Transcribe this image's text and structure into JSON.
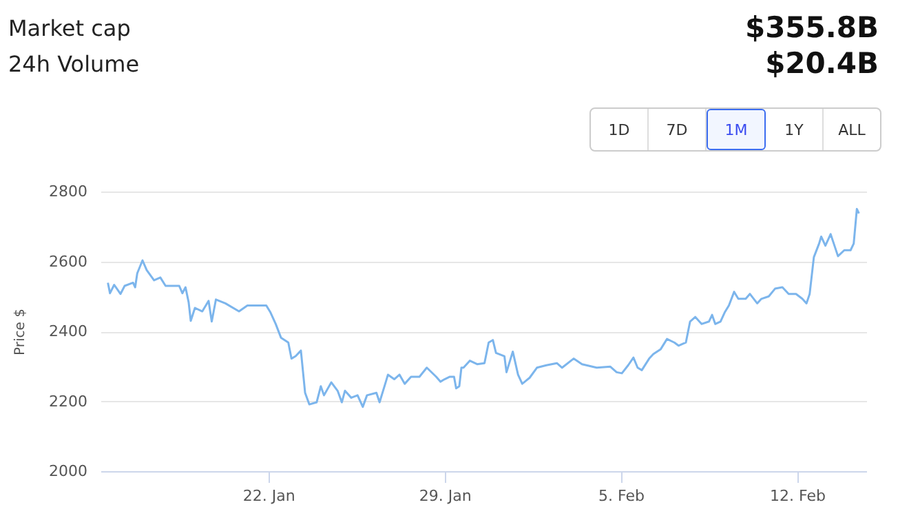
{
  "chart_data": {
    "type": "line",
    "ylabel": "Price $",
    "annotations": [
      "Market cap",
      "$355.8B",
      "24h Volume",
      "$20.4B",
      "1D",
      "7D",
      "1M",
      "1Y",
      "ALL"
    ],
    "xlim": [
      "--01-15T08:00",
      "--02-14T18:00"
    ],
    "xticks": [
      {
        "value": "--01-22",
        "label": "22. Jan"
      },
      {
        "value": "--01-29",
        "label": "29. Jan"
      },
      {
        "value": "--02-05",
        "label": "5. Feb"
      },
      {
        "value": "--02-12",
        "label": "12. Feb"
      }
    ],
    "ylim": [
      2000,
      2800
    ],
    "yticks": [
      2000,
      2200,
      2400,
      2600,
      2800
    ],
    "grid": "y",
    "series": [
      {
        "color": "#7cb5ec",
        "x": [
          "--01-15T15:00",
          "--01-15T17:00",
          "--01-15T21:00",
          "--01-16T03:00",
          "--01-16T07:00",
          "--01-16T15:00",
          "--01-16T17:00",
          "--01-16T19:00",
          "--01-17T00:00",
          "--01-17T04:00",
          "--01-17T11:00",
          "--01-17T17:00",
          "--01-17T22:00",
          "--01-18T11:00",
          "--01-18T14:00",
          "--01-18T17:00",
          "--01-18T20:00",
          "--01-18T22:00",
          "--01-19T02:00",
          "--01-19T09:00",
          "--01-19T15:00",
          "--01-19T18:00",
          "--01-19T22:00",
          "--01-20T07:00",
          "--01-20T20:00",
          "--01-21T04:00",
          "--01-21T22:00",
          "--01-22T02:00",
          "--01-22T07:00",
          "--01-22T12:00",
          "--01-22T19:00",
          "--01-22T22:00",
          "--01-23T02:00",
          "--01-23T07:00",
          "--01-23T11:00",
          "--01-23T15:00",
          "--01-23T22:00",
          "--01-24T02:00",
          "--01-24T05:00",
          "--01-24T12:00",
          "--01-24T18:00",
          "--01-24T22:00",
          "--01-25T01:00",
          "--01-25T07:00",
          "--01-25T13:00",
          "--01-25T18:00",
          "--01-25T22:00",
          "--01-26T07:00",
          "--01-26T10:00",
          "--01-26T16:00",
          "--01-26T18:00",
          "--01-27T00:00",
          "--01-27T05:00",
          "--01-27T10:00",
          "--01-27T16:00",
          "--01-28T00:00",
          "--01-28T07:00",
          "--01-28T16:00",
          "--01-28T20:00",
          "--01-29T00:00",
          "--01-29T05:00",
          "--01-29T09:00",
          "--01-29T11:00",
          "--01-29T14:00",
          "--01-29T16:00",
          "--01-29T18:00",
          "--01-30T00:00",
          "--01-30T07:00",
          "--01-30T14:00",
          "--01-30T18:00",
          "--01-30T22:00",
          "--01-31T01:00",
          "--01-31T09:00",
          "--01-31T11:00",
          "--01-31T17:00",
          "--01-31T22:00",
          "--02-01T02:00",
          "--02-01T09:00",
          "--02-01T16:00",
          "--02-02T01:00",
          "--02-02T11:00",
          "--02-02T16:00",
          "--02-03T03:00",
          "--02-03T11:00",
          "--02-04T01:00",
          "--02-04T14:00",
          "--02-04T20:00",
          "--02-05T01:00",
          "--02-05T07:00",
          "--02-05T12:00",
          "--02-05T16:00",
          "--02-05T20:00",
          "--02-06T03:00",
          "--02-06T07:00",
          "--02-06T14:00",
          "--02-06T20:00",
          "--02-07T03:00",
          "--02-07T07:00",
          "--02-07T14:00",
          "--02-07T18:00",
          "--02-07T23:00",
          "--02-08T05:00",
          "--02-08T12:00",
          "--02-08T15:00",
          "--02-08T18:00",
          "--02-08T23:00",
          "--02-09T03:00",
          "--02-09T07:00",
          "--02-09T12:00",
          "--02-09T16:00",
          "--02-09T23:00",
          "--02-10T03:00",
          "--02-10T10:00",
          "--02-10T14:00",
          "--02-10T21:00",
          "--02-11T03:00",
          "--02-11T10:00",
          "--02-11T16:00",
          "--02-11T23:00",
          "--02-12T05:00",
          "--02-12T09:00",
          "--02-12T12:00",
          "--02-12T16:00",
          "--02-12T21:00",
          "--02-12T23:00",
          "--02-13T03:00",
          "--02-13T08:00",
          "--02-13T11:00",
          "--02-13T15:00",
          "--02-13T21:00",
          "--02-14T03:00",
          "--02-14T06:00",
          "--02-14T09:00",
          "--02-14T11:00"
        ],
        "values": [
          2539,
          2509,
          2533,
          2507,
          2530,
          2539,
          2526,
          2566,
          2603,
          2575,
          2546,
          2554,
          2530,
          2530,
          2509,
          2526,
          2483,
          2430,
          2467,
          2457,
          2487,
          2428,
          2491,
          2480,
          2457,
          2474,
          2474,
          2454,
          2421,
          2382,
          2368,
          2322,
          2329,
          2345,
          2224,
          2191,
          2197,
          2243,
          2217,
          2254,
          2230,
          2197,
          2230,
          2210,
          2217,
          2184,
          2217,
          2224,
          2197,
          2256,
          2276,
          2263,
          2276,
          2250,
          2270,
          2270,
          2296,
          2270,
          2256,
          2263,
          2270,
          2270,
          2237,
          2243,
          2296,
          2296,
          2316,
          2306,
          2309,
          2368,
          2375,
          2338,
          2329,
          2283,
          2342,
          2276,
          2250,
          2267,
          2296,
          2303,
          2309,
          2296,
          2322,
          2306,
          2296,
          2299,
          2283,
          2280,
          2303,
          2325,
          2296,
          2289,
          2322,
          2335,
          2349,
          2378,
          2368,
          2359,
          2368,
          2428,
          2441,
          2421,
          2428,
          2447,
          2421,
          2428,
          2454,
          2474,
          2513,
          2493,
          2493,
          2507,
          2480,
          2493,
          2500,
          2522,
          2526,
          2507,
          2507,
          2493,
          2480,
          2507,
          2612,
          2651,
          2671,
          2645,
          2678,
          2651,
          2615,
          2632,
          2632,
          2651,
          2750,
          2737
        ]
      }
    ]
  }
}
